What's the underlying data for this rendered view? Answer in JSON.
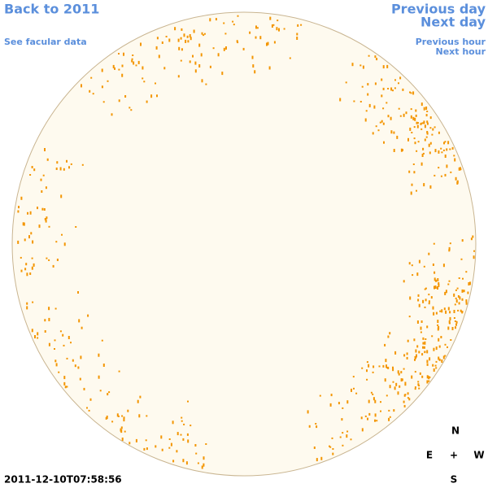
{
  "nav": {
    "back": "Back to 2011",
    "facular_data": "See facular data",
    "previous_day": "Previous day",
    "next_day": "Next day",
    "previous_hour": "Previous hour",
    "next_hour": "Next hour"
  },
  "compass": {
    "north": "N",
    "east": "E",
    "center": "+",
    "west": "W",
    "south": "S"
  },
  "timestamp": "2011-12-10T07:58:56"
}
